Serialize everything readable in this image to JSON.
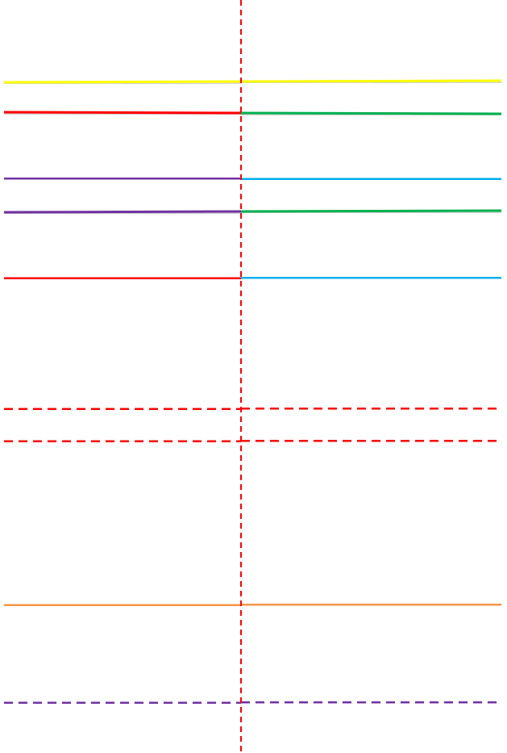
{
  "colors": {
    "yellow": "#ffff00",
    "red": "#ff0000",
    "green": "#00b050",
    "purple": "#7030a0",
    "light_blue": "#00b0f0",
    "orange": "#f79646",
    "blue": "#0070c0"
  },
  "divider": {
    "color": "#ff0000",
    "style": "dashed"
  },
  "lines": [
    {
      "left": "yellow",
      "right": "yellow",
      "style": "solid"
    },
    {
      "left": "red",
      "right": "green",
      "style": "solid"
    },
    {
      "left": "purple",
      "right": "light_blue",
      "style": "solid"
    },
    {
      "left": "purple",
      "right": "green",
      "style": "solid"
    },
    {
      "left": "red",
      "right": "light_blue",
      "style": "solid"
    },
    {
      "left": "yellow",
      "right": "yellow",
      "style": "solid"
    },
    {
      "left": "green",
      "right": "green",
      "style": "dashed"
    },
    {
      "left": "red",
      "right": "red",
      "style": "dashed"
    },
    {
      "left": "red",
      "right": "red",
      "style": "dashed"
    },
    {
      "left": "yellow",
      "right": "yellow",
      "style": "solid"
    },
    {
      "left": "yellow",
      "right": "yellow",
      "style": "solid"
    },
    {
      "left": "orange",
      "right": "orange",
      "style": "solid"
    },
    {
      "left": "blue",
      "right": "orange",
      "style": "dashed"
    },
    {
      "left": "blue",
      "right": "orange",
      "style": "dashed"
    },
    {
      "left": "purple",
      "right": "purple",
      "style": "dashed"
    }
  ]
}
